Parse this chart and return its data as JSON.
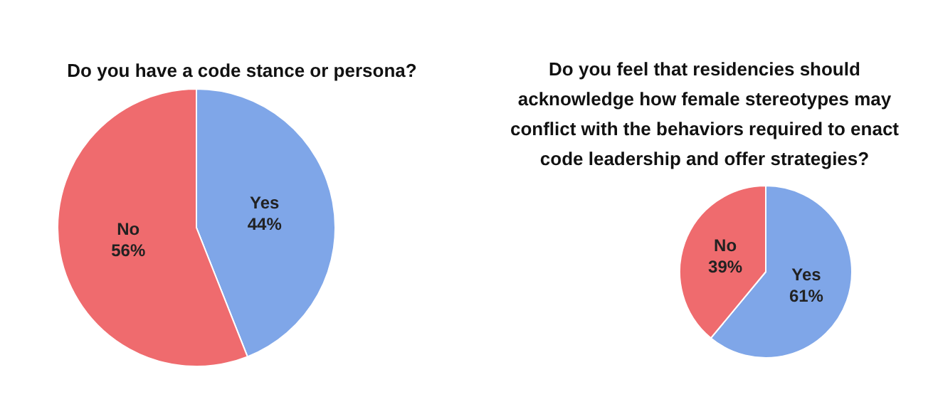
{
  "chart_data": [
    {
      "type": "pie",
      "title": "Do you have a code stance or persona?",
      "categories": [
        "Yes",
        "No"
      ],
      "values": [
        44,
        56
      ],
      "colors": [
        "#7fa6e8",
        "#ef6b6e"
      ],
      "value_labels": [
        "44%",
        "56%"
      ],
      "legend": false
    },
    {
      "type": "pie",
      "title": "Do you feel that residencies should acknowledge how female stereotypes may conflict with the behaviors required to enact code leadership and offer strategies?",
      "categories": [
        "Yes",
        "No"
      ],
      "values": [
        61,
        39
      ],
      "colors": [
        "#7fa6e8",
        "#ef6b6e"
      ],
      "value_labels": [
        "61%",
        "39%"
      ],
      "legend": false
    }
  ]
}
